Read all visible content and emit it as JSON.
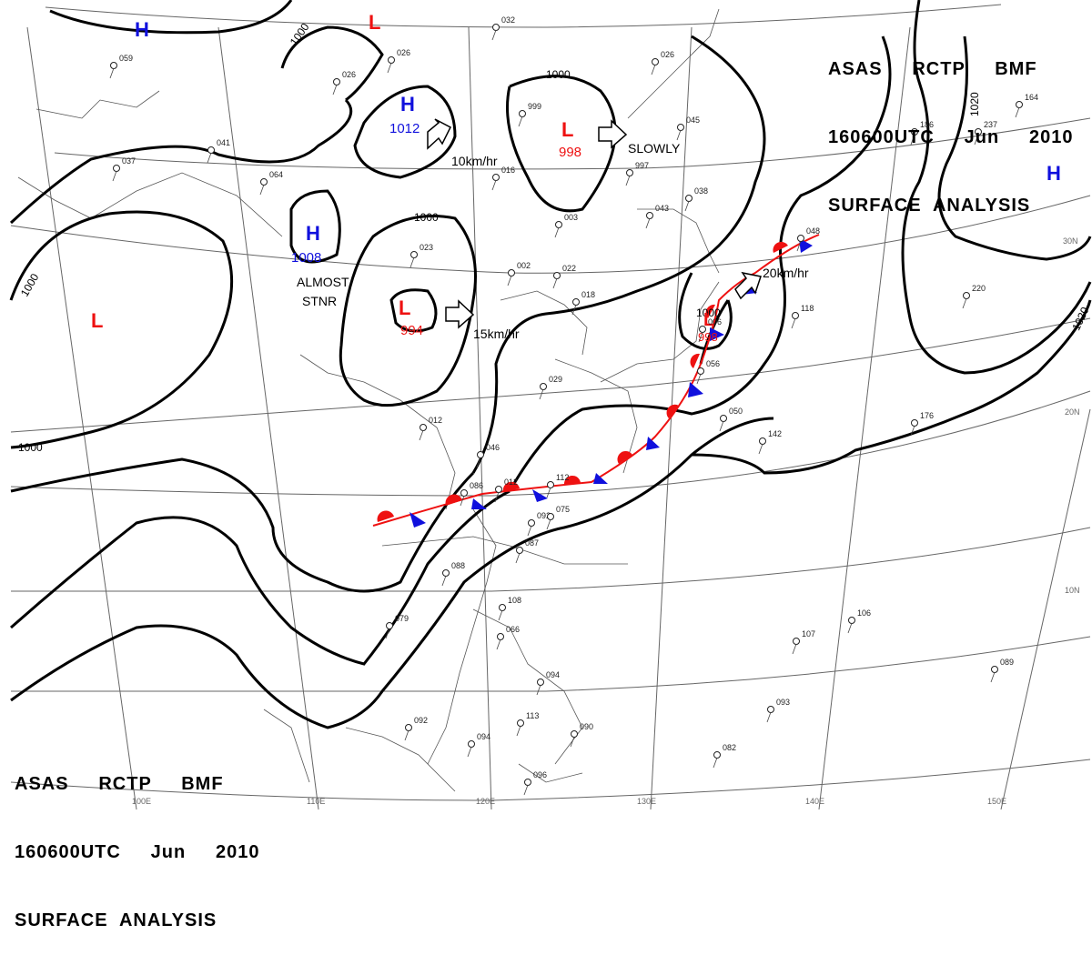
{
  "header_top": {
    "line1": "ASAS     RCTP     BMF",
    "line2": "160600UTC     Jun     2010",
    "line3": "SURFACE  ANALYSIS"
  },
  "header_bottom": {
    "line1": "ASAS     RCTP     BMF",
    "line2": "160600UTC     Jun     2010",
    "line3": "SURFACE  ANALYSIS"
  },
  "colors": {
    "high": "#1010dd",
    "low": "#ee1111",
    "warm_front": "#ee1111",
    "cold_front": "#1010dd",
    "isobar": "#000000"
  },
  "isobar_labels": [
    "1000",
    "1000",
    "1000",
    "1000",
    "1000",
    "1000",
    "1020",
    "1020"
  ],
  "pressure_centers": [
    {
      "type": "H",
      "value": ""
    },
    {
      "type": "L",
      "value": ""
    },
    {
      "type": "H",
      "value": "1012"
    },
    {
      "type": "L",
      "value": "998"
    },
    {
      "type": "H",
      "value": "1008"
    },
    {
      "type": "L",
      "value": "994"
    },
    {
      "type": "L",
      "value": ""
    },
    {
      "type": "L",
      "value": "998"
    },
    {
      "type": "H",
      "value": ""
    }
  ],
  "movements": [
    "10km/hr",
    "SLOWLY",
    "15km/hr",
    "20km/hr"
  ],
  "almost_stationary": [
    "ALMOST",
    "STNR"
  ],
  "longitude_labels": [
    "100E",
    "110E",
    "120E",
    "130E",
    "140E",
    "150E"
  ],
  "latitude_labels": [
    "30N",
    "20N",
    "10N"
  ],
  "stations": [
    "059",
    "037",
    "041",
    "064",
    "026",
    "023",
    "012",
    "016",
    "032",
    "026",
    "999",
    "026",
    "997",
    "043",
    "038",
    "045",
    "029",
    "003",
    "002",
    "022",
    "018",
    "046",
    "012",
    "092",
    "075",
    "087",
    "086",
    "112",
    "088",
    "108",
    "066",
    "079",
    "094",
    "090",
    "092",
    "094",
    "113",
    "096",
    "082",
    "093",
    "089",
    "106",
    "107",
    "142",
    "176",
    "220",
    "118",
    "186",
    "237",
    "164",
    "056",
    "048",
    "050",
    "006"
  ]
}
